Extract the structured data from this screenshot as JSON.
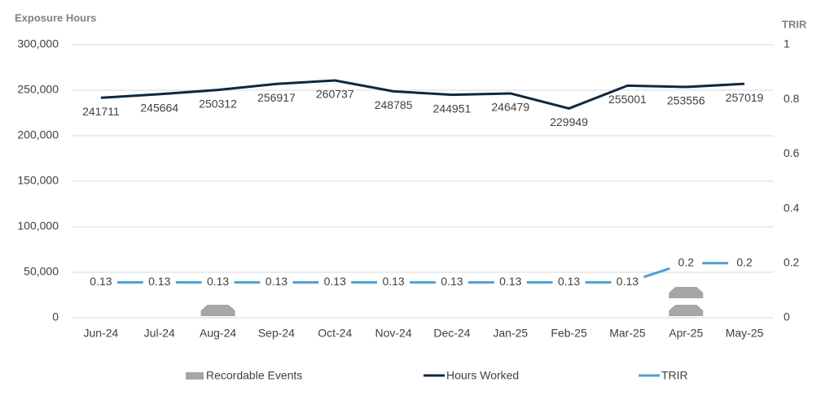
{
  "chart_data": {
    "type": "line",
    "y_title": "Exposure Hours",
    "y2_title": "TRIR",
    "categories": [
      "Jun-24",
      "Jul-24",
      "Aug-24",
      "Sep-24",
      "Oct-24",
      "Nov-24",
      "Dec-24",
      "Jan-25",
      "Feb-25",
      "Mar-25",
      "Apr-25",
      "May-25"
    ],
    "series": [
      {
        "name": "Recordable Events",
        "color": "#a6a6a6",
        "kind": "icons",
        "values": [
          0,
          0,
          1,
          0,
          0,
          0,
          0,
          0,
          0,
          0,
          2,
          0
        ]
      },
      {
        "name": "Hours Worked",
        "color": "#0e2841",
        "values": [
          241711,
          245664,
          250312,
          256917,
          260737,
          248785,
          244951,
          246479,
          229949,
          255001,
          253556,
          257019
        ]
      },
      {
        "name": "TRIR",
        "color": "#4e9fd1",
        "axis": "y2",
        "values": [
          0.13,
          0.13,
          0.13,
          0.13,
          0.13,
          0.13,
          0.13,
          0.13,
          0.13,
          0.13,
          0.2,
          0.2
        ]
      }
    ],
    "ylim": [
      0,
      300000
    ],
    "yticks": [
      0,
      {
        "value": 50000,
        "label": "50,000"
      },
      {
        "value": 100000,
        "label": "100,000"
      },
      {
        "value": 150000,
        "label": "150,000"
      },
      {
        "value": 200000,
        "label": "200,000"
      },
      {
        "value": 250000,
        "label": "250,000"
      },
      {
        "value": 300000,
        "label": "300,000"
      }
    ],
    "y2lim": [
      0,
      1
    ],
    "y2ticks": [
      0,
      0.2,
      0.4,
      0.6,
      0.8,
      1
    ],
    "grid": true,
    "legend": "bottom"
  }
}
